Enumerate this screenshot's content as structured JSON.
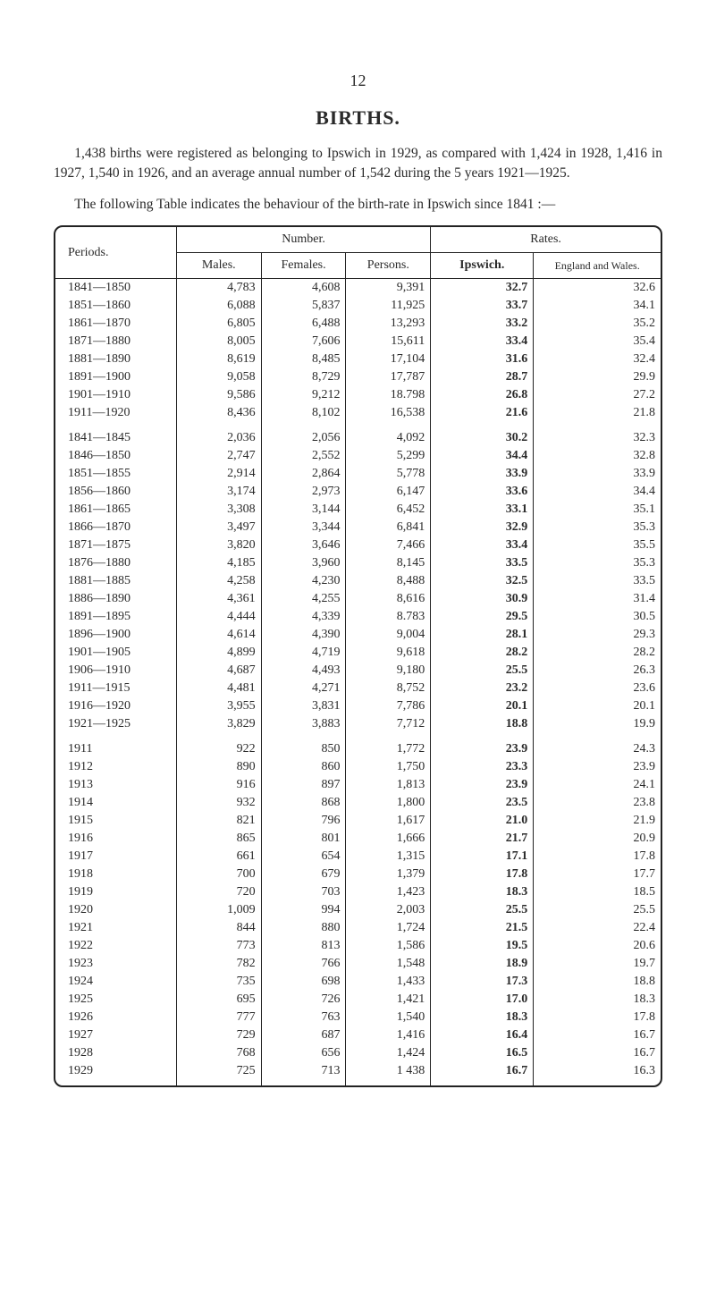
{
  "page_number": "12",
  "title": "BIRTHS.",
  "para1": "1,438 births were registered as belonging to Ipswich in 1929, as compared with 1,424 in 1928, 1,416 in 1927, 1,540 in 1926, and an average annual number of 1,542 during the 5 years 1921—1925.",
  "para2": "The following Table indicates the behaviour of the birth-rate in Ipswich since 1841 :—",
  "headers": {
    "periods": "Periods.",
    "number": "Number.",
    "rates": "Rates.",
    "males": "Males.",
    "females": "Females.",
    "persons": "Persons.",
    "ipswich": "Ipswich.",
    "ew": "England and Wales."
  },
  "sections": [
    {
      "rows": [
        {
          "period": "1841—1850",
          "males": "4,783",
          "females": "4,608",
          "persons": "9,391",
          "ipswich": "32.7",
          "ew": "32.6"
        },
        {
          "period": "1851—1860",
          "males": "6,088",
          "females": "5,837",
          "persons": "11,925",
          "ipswich": "33.7",
          "ew": "34.1"
        },
        {
          "period": "1861—1870",
          "males": "6,805",
          "females": "6,488",
          "persons": "13,293",
          "ipswich": "33.2",
          "ew": "35.2"
        },
        {
          "period": "1871—1880",
          "males": "8,005",
          "females": "7,606",
          "persons": "15,611",
          "ipswich": "33.4",
          "ew": "35.4"
        },
        {
          "period": "1881—1890",
          "males": "8,619",
          "females": "8,485",
          "persons": "17,104",
          "ipswich": "31.6",
          "ew": "32.4"
        },
        {
          "period": "1891—1900",
          "males": "9,058",
          "females": "8,729",
          "persons": "17,787",
          "ipswich": "28.7",
          "ew": "29.9"
        },
        {
          "period": "1901—1910",
          "males": "9,586",
          "females": "9,212",
          "persons": "18.798",
          "ipswich": "26.8",
          "ew": "27.2"
        },
        {
          "period": "1911—1920",
          "males": "8,436",
          "females": "8,102",
          "persons": "16,538",
          "ipswich": "21.6",
          "ew": "21.8"
        }
      ]
    },
    {
      "rows": [
        {
          "period": "1841—1845",
          "males": "2,036",
          "females": "2,056",
          "persons": "4,092",
          "ipswich": "30.2",
          "ew": "32.3"
        },
        {
          "period": "1846—1850",
          "males": "2,747",
          "females": "2,552",
          "persons": "5,299",
          "ipswich": "34.4",
          "ew": "32.8"
        },
        {
          "period": "1851—1855",
          "males": "2,914",
          "females": "2,864",
          "persons": "5,778",
          "ipswich": "33.9",
          "ew": "33.9"
        },
        {
          "period": "1856—1860",
          "males": "3,174",
          "females": "2,973",
          "persons": "6,147",
          "ipswich": "33.6",
          "ew": "34.4"
        },
        {
          "period": "1861—1865",
          "males": "3,308",
          "females": "3,144",
          "persons": "6,452",
          "ipswich": "33.1",
          "ew": "35.1"
        },
        {
          "period": "1866—1870",
          "males": "3,497",
          "females": "3,344",
          "persons": "6,841",
          "ipswich": "32.9",
          "ew": "35.3"
        },
        {
          "period": "1871—1875",
          "males": "3,820",
          "females": "3,646",
          "persons": "7,466",
          "ipswich": "33.4",
          "ew": "35.5"
        },
        {
          "period": "1876—1880",
          "males": "4,185",
          "females": "3,960",
          "persons": "8,145",
          "ipswich": "33.5",
          "ew": "35.3"
        },
        {
          "period": "1881—1885",
          "males": "4,258",
          "females": "4,230",
          "persons": "8,488",
          "ipswich": "32.5",
          "ew": "33.5"
        },
        {
          "period": "1886—1890",
          "males": "4,361",
          "females": "4,255",
          "persons": "8,616",
          "ipswich": "30.9",
          "ew": "31.4"
        },
        {
          "period": "1891—1895",
          "males": "4,444",
          "females": "4,339",
          "persons": "8.783",
          "ipswich": "29.5",
          "ew": "30.5"
        },
        {
          "period": "1896—1900",
          "males": "4,614",
          "females": "4,390",
          "persons": "9,004",
          "ipswich": "28.1",
          "ew": "29.3"
        },
        {
          "period": "1901—1905",
          "males": "4,899",
          "females": "4,719",
          "persons": "9,618",
          "ipswich": "28.2",
          "ew": "28.2"
        },
        {
          "period": "1906—1910",
          "males": "4,687",
          "females": "4,493",
          "persons": "9,180",
          "ipswich": "25.5",
          "ew": "26.3"
        },
        {
          "period": "1911—1915",
          "males": "4,481",
          "females": "4,271",
          "persons": "8,752",
          "ipswich": "23.2",
          "ew": "23.6"
        },
        {
          "period": "1916—1920",
          "males": "3,955",
          "females": "3,831",
          "persons": "7,786",
          "ipswich": "20.1",
          "ew": "20.1"
        },
        {
          "period": "1921—1925",
          "males": "3,829",
          "females": "3,883",
          "persons": "7,712",
          "ipswich": "18.8",
          "ew": "19.9"
        }
      ]
    },
    {
      "rows": [
        {
          "period": "1911",
          "males": "922",
          "females": "850",
          "persons": "1,772",
          "ipswich": "23.9",
          "ew": "24.3"
        },
        {
          "period": "1912",
          "males": "890",
          "females": "860",
          "persons": "1,750",
          "ipswich": "23.3",
          "ew": "23.9"
        },
        {
          "period": "1913",
          "males": "916",
          "females": "897",
          "persons": "1,813",
          "ipswich": "23.9",
          "ew": "24.1"
        },
        {
          "period": "1914",
          "males": "932",
          "females": "868",
          "persons": "1,800",
          "ipswich": "23.5",
          "ew": "23.8"
        },
        {
          "period": "1915",
          "males": "821",
          "females": "796",
          "persons": "1,617",
          "ipswich": "21.0",
          "ew": "21.9"
        },
        {
          "period": "1916",
          "males": "865",
          "females": "801",
          "persons": "1,666",
          "ipswich": "21.7",
          "ew": "20.9"
        },
        {
          "period": "1917",
          "males": "661",
          "females": "654",
          "persons": "1,315",
          "ipswich": "17.1",
          "ew": "17.8"
        },
        {
          "period": "1918",
          "males": "700",
          "females": "679",
          "persons": "1,379",
          "ipswich": "17.8",
          "ew": "17.7"
        },
        {
          "period": "1919",
          "males": "720",
          "females": "703",
          "persons": "1,423",
          "ipswich": "18.3",
          "ew": "18.5"
        },
        {
          "period": "1920",
          "males": "1,009",
          "females": "994",
          "persons": "2,003",
          "ipswich": "25.5",
          "ew": "25.5"
        },
        {
          "period": "1921",
          "males": "844",
          "females": "880",
          "persons": "1,724",
          "ipswich": "21.5",
          "ew": "22.4"
        },
        {
          "period": "1922",
          "males": "773",
          "females": "813",
          "persons": "1,586",
          "ipswich": "19.5",
          "ew": "20.6"
        },
        {
          "period": "1923",
          "males": "782",
          "females": "766",
          "persons": "1,548",
          "ipswich": "18.9",
          "ew": "19.7"
        },
        {
          "period": "1924",
          "males": "735",
          "females": "698",
          "persons": "1,433",
          "ipswich": "17.3",
          "ew": "18.8"
        },
        {
          "period": "1925",
          "males": "695",
          "females": "726",
          "persons": "1,421",
          "ipswich": "17.0",
          "ew": "18.3"
        },
        {
          "period": "1926",
          "males": "777",
          "females": "763",
          "persons": "1,540",
          "ipswich": "18.3",
          "ew": "17.8"
        },
        {
          "period": "1927",
          "males": "729",
          "females": "687",
          "persons": "1,416",
          "ipswich": "16.4",
          "ew": "16.7"
        },
        {
          "period": "1928",
          "males": "768",
          "females": "656",
          "persons": "1,424",
          "ipswich": "16.5",
          "ew": "16.7"
        },
        {
          "period": "1929",
          "males": "725",
          "females": "713",
          "persons": "1 438",
          "ipswich": "16.7",
          "ew": "16.3"
        }
      ]
    }
  ]
}
